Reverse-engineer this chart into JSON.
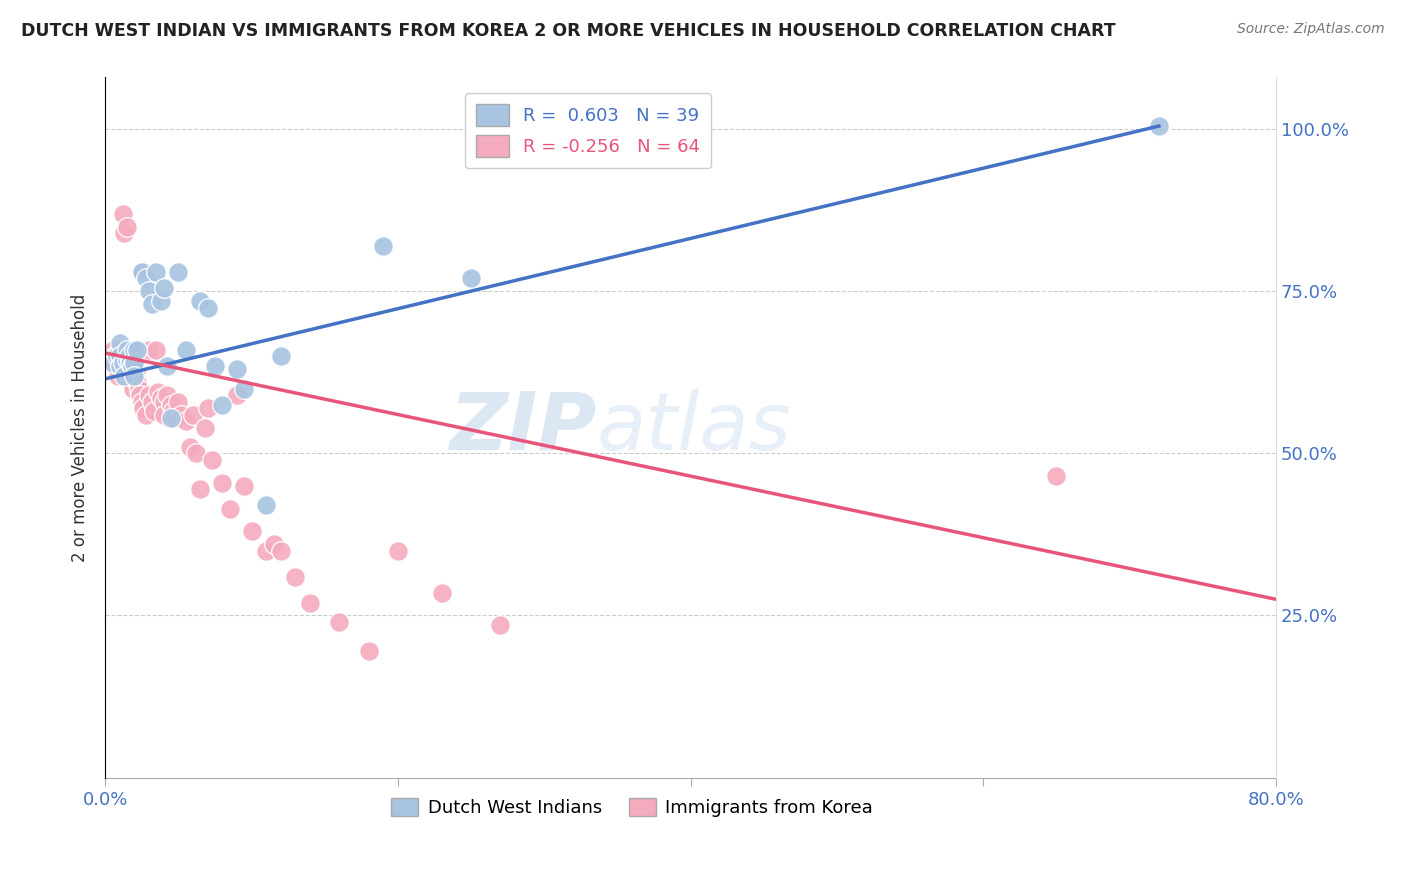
{
  "title": "DUTCH WEST INDIAN VS IMMIGRANTS FROM KOREA 2 OR MORE VEHICLES IN HOUSEHOLD CORRELATION CHART",
  "source": "Source: ZipAtlas.com",
  "ylabel": "2 or more Vehicles in Household",
  "xlim": [
    0.0,
    0.8
  ],
  "ylim": [
    0.0,
    1.08
  ],
  "ytick_vals": [
    0.25,
    0.5,
    0.75,
    1.0
  ],
  "ytick_labels": [
    "25.0%",
    "50.0%",
    "75.0%",
    "100.0%"
  ],
  "xtick_vals": [
    0.0,
    0.2,
    0.4,
    0.6,
    0.8
  ],
  "xtick_labels": [
    "0.0%",
    "",
    "",
    "",
    "80.0%"
  ],
  "blue_R": 0.603,
  "blue_N": 39,
  "pink_R": -0.256,
  "pink_N": 64,
  "blue_color": "#A8C4E0",
  "pink_color": "#F4ABBE",
  "blue_line_color": "#4472C4",
  "pink_line_color": "#E8547A",
  "blue_line_x0": 0.0,
  "blue_line_y0": 0.615,
  "blue_line_x1": 0.72,
  "blue_line_y1": 1.005,
  "pink_line_x0": 0.0,
  "pink_line_y0": 0.655,
  "pink_line_x1": 0.8,
  "pink_line_y1": 0.275,
  "watermark_zip": "ZIP",
  "watermark_atlas": "atlas",
  "legend_label_blue": "R =  0.603   N = 39",
  "legend_label_pink": "R = -0.256   N = 64",
  "bottom_legend_blue": "Dutch West Indians",
  "bottom_legend_pink": "Immigrants from Korea",
  "blue_scatter_x": [
    0.005,
    0.008,
    0.01,
    0.01,
    0.01,
    0.012,
    0.013,
    0.015,
    0.015,
    0.016,
    0.017,
    0.018,
    0.02,
    0.02,
    0.02,
    0.022,
    0.025,
    0.025,
    0.028,
    0.03,
    0.032,
    0.035,
    0.038,
    0.04,
    0.042,
    0.045,
    0.05,
    0.055,
    0.065,
    0.07,
    0.075,
    0.08,
    0.09,
    0.095,
    0.11,
    0.12,
    0.19,
    0.25,
    0.72
  ],
  "blue_scatter_y": [
    0.64,
    0.65,
    0.67,
    0.65,
    0.635,
    0.64,
    0.62,
    0.66,
    0.645,
    0.65,
    0.64,
    0.635,
    0.66,
    0.64,
    0.62,
    0.66,
    0.78,
    0.78,
    0.77,
    0.75,
    0.73,
    0.78,
    0.735,
    0.755,
    0.635,
    0.555,
    0.78,
    0.66,
    0.735,
    0.725,
    0.635,
    0.575,
    0.63,
    0.6,
    0.42,
    0.65,
    0.82,
    0.77,
    1.005
  ],
  "pink_scatter_x": [
    0.005,
    0.006,
    0.007,
    0.008,
    0.009,
    0.01,
    0.01,
    0.012,
    0.013,
    0.014,
    0.015,
    0.015,
    0.016,
    0.017,
    0.018,
    0.019,
    0.02,
    0.02,
    0.021,
    0.022,
    0.023,
    0.024,
    0.025,
    0.026,
    0.028,
    0.03,
    0.03,
    0.032,
    0.033,
    0.035,
    0.036,
    0.038,
    0.04,
    0.04,
    0.042,
    0.045,
    0.046,
    0.048,
    0.05,
    0.052,
    0.055,
    0.058,
    0.06,
    0.062,
    0.065,
    0.068,
    0.07,
    0.073,
    0.08,
    0.085,
    0.09,
    0.095,
    0.1,
    0.11,
    0.115,
    0.12,
    0.13,
    0.14,
    0.16,
    0.18,
    0.2,
    0.23,
    0.27,
    0.65
  ],
  "pink_scatter_y": [
    0.66,
    0.64,
    0.65,
    0.63,
    0.62,
    0.66,
    0.64,
    0.87,
    0.84,
    0.66,
    0.85,
    0.645,
    0.63,
    0.62,
    0.61,
    0.6,
    0.66,
    0.64,
    0.625,
    0.61,
    0.6,
    0.59,
    0.58,
    0.57,
    0.56,
    0.66,
    0.59,
    0.58,
    0.565,
    0.66,
    0.595,
    0.585,
    0.58,
    0.56,
    0.59,
    0.575,
    0.565,
    0.555,
    0.58,
    0.56,
    0.55,
    0.51,
    0.56,
    0.5,
    0.445,
    0.54,
    0.57,
    0.49,
    0.455,
    0.415,
    0.59,
    0.45,
    0.38,
    0.35,
    0.36,
    0.35,
    0.31,
    0.27,
    0.24,
    0.195,
    0.35,
    0.285,
    0.235,
    0.465
  ]
}
